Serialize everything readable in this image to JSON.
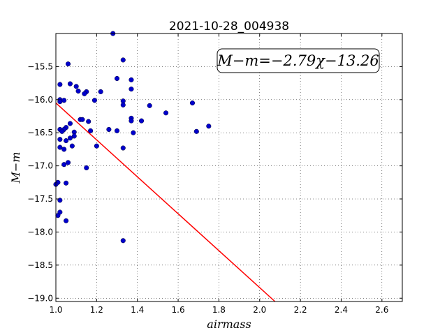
{
  "chart_data": {
    "type": "scatter",
    "title": "2021-10-28_004938",
    "xlabel": "airmass",
    "ylabel": "M−m",
    "xlim": [
      1.0,
      2.7
    ],
    "ylim": [
      -19.05,
      -15.0
    ],
    "x_ticks": [
      1.0,
      1.2,
      1.4,
      1.6,
      1.8,
      2.0,
      2.2,
      2.4,
      2.6
    ],
    "x_tick_labels": [
      "1.0",
      "1.2",
      "1.4",
      "1.6",
      "1.8",
      "2.0",
      "2.2",
      "2.4",
      "2.6"
    ],
    "y_ticks": [
      -15.5,
      -16.0,
      -16.5,
      -17.0,
      -17.5,
      -18.0,
      -18.5,
      -19.0
    ],
    "y_tick_labels": [
      "−15.5",
      "−16.0",
      "−16.5",
      "−17.0",
      "−17.5",
      "−18.0",
      "−18.5",
      "−19.0"
    ],
    "grid": true,
    "annotation": "M−m=−2.79χ−13.26",
    "fit_line": {
      "slope": -2.79,
      "intercept": -13.26,
      "color": "#ff0000"
    },
    "marker_color": "#0000cc",
    "points": [
      [
        1.28,
        -15.0
      ],
      [
        1.33,
        -15.4
      ],
      [
        1.06,
        -15.46
      ],
      [
        1.3,
        -15.68
      ],
      [
        1.37,
        -15.7
      ],
      [
        1.02,
        -15.77
      ],
      [
        1.07,
        -15.76
      ],
      [
        1.1,
        -15.8
      ],
      [
        1.37,
        -15.84
      ],
      [
        1.11,
        -15.87
      ],
      [
        1.22,
        -15.88
      ],
      [
        1.15,
        -15.88
      ],
      [
        1.14,
        -15.91
      ],
      [
        1.02,
        -16.0
      ],
      [
        1.04,
        -16.01
      ],
      [
        1.02,
        -16.03
      ],
      [
        1.19,
        -16.01
      ],
      [
        1.33,
        -16.02
      ],
      [
        1.33,
        -16.08
      ],
      [
        1.46,
        -16.09
      ],
      [
        1.67,
        -16.05
      ],
      [
        1.54,
        -16.2
      ],
      [
        1.12,
        -16.3
      ],
      [
        1.13,
        -16.3
      ],
      [
        1.37,
        -16.28
      ],
      [
        1.37,
        -16.32
      ],
      [
        1.42,
        -16.32
      ],
      [
        1.16,
        -16.33
      ],
      [
        1.07,
        -16.36
      ],
      [
        1.75,
        -16.4
      ],
      [
        1.05,
        -16.42
      ],
      [
        1.02,
        -16.45
      ],
      [
        1.04,
        -16.45
      ],
      [
        1.03,
        -16.48
      ],
      [
        1.26,
        -16.45
      ],
      [
        1.3,
        -16.47
      ],
      [
        1.17,
        -16.47
      ],
      [
        1.69,
        -16.48
      ],
      [
        1.09,
        -16.49
      ],
      [
        1.38,
        -16.5
      ],
      [
        1.09,
        -16.55
      ],
      [
        1.07,
        -16.58
      ],
      [
        1.02,
        -16.6
      ],
      [
        1.05,
        -16.62
      ],
      [
        1.08,
        -16.7
      ],
      [
        1.2,
        -16.7
      ],
      [
        1.02,
        -16.72
      ],
      [
        1.04,
        -16.75
      ],
      [
        1.33,
        -16.73
      ],
      [
        1.06,
        -16.95
      ],
      [
        1.04,
        -16.98
      ],
      [
        1.15,
        -17.03
      ],
      [
        1.01,
        -17.25
      ],
      [
        1.05,
        -17.26
      ],
      [
        1.0,
        -17.28
      ],
      [
        1.02,
        -17.52
      ],
      [
        1.02,
        -17.7
      ],
      [
        1.01,
        -17.75
      ],
      [
        1.05,
        -17.83
      ],
      [
        1.33,
        -18.13
      ]
    ]
  }
}
